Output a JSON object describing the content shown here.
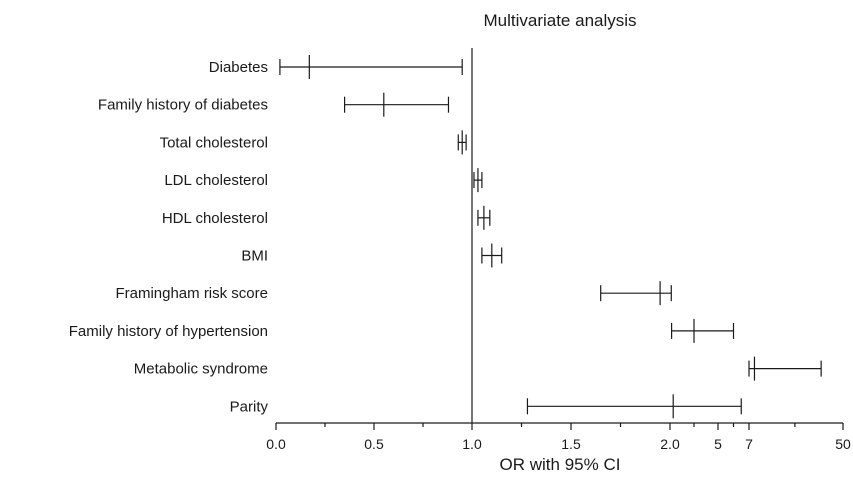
{
  "chart_data": {
    "type": "forest",
    "title": "Multivariate analysis",
    "xlabel": "OR with 95% CI",
    "reference_value": 1.0,
    "x_ticks": [
      "0.0",
      "0.5",
      "1.0",
      "1.5",
      "2.0",
      "5",
      "7",
      "50"
    ],
    "x_axis_note": "broken non-linear scale: 0–2.0 linear, then 5, 7, 50",
    "rows": [
      {
        "label": "Diabetes",
        "or": 0.17,
        "lo": 0.02,
        "hi": 0.95
      },
      {
        "label": "Family history of diabetes",
        "or": 0.55,
        "lo": 0.35,
        "hi": 0.88
      },
      {
        "label": "Total cholesterol",
        "or": 0.95,
        "lo": 0.93,
        "hi": 0.97
      },
      {
        "label": "LDL cholesterol",
        "or": 1.03,
        "lo": 1.01,
        "hi": 1.05
      },
      {
        "label": "HDL cholesterol",
        "or": 1.06,
        "lo": 1.03,
        "hi": 1.09
      },
      {
        "label": "BMI",
        "or": 1.1,
        "lo": 1.05,
        "hi": 1.15
      },
      {
        "label": "Framingham risk score",
        "or": 1.95,
        "lo": 1.65,
        "hi": 2.08
      },
      {
        "label": "Family history of hypertension",
        "or": 3.5,
        "lo": 2.1,
        "hi": 6.0
      },
      {
        "label": "Metabolic syndrome",
        "or": 9.5,
        "lo": 7.0,
        "hi": 40.0
      },
      {
        "label": "Parity",
        "or": 2.2,
        "lo": 1.28,
        "hi": 6.5
      }
    ]
  }
}
